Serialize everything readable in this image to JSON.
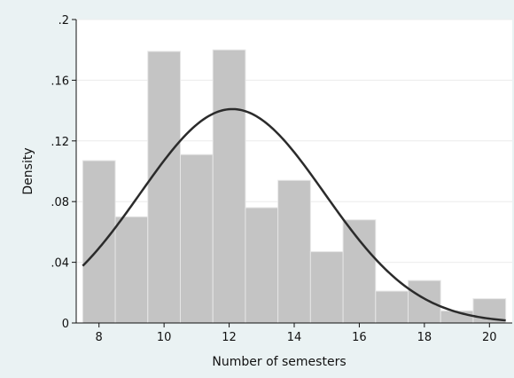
{
  "chart_data": {
    "type": "histogram",
    "title": "",
    "xlabel": "Number of semesters",
    "ylabel": "Density",
    "xlim": [
      7.3,
      20.7
    ],
    "ylim": [
      0,
      0.2
    ],
    "x_ticks": [
      8,
      10,
      12,
      14,
      16,
      18,
      20
    ],
    "x_tick_labels": [
      "8",
      "10",
      "12",
      "14",
      "16",
      "18",
      "20"
    ],
    "y_ticks": [
      0,
      0.04,
      0.08,
      0.12,
      0.16,
      0.2
    ],
    "y_tick_labels": [
      "0",
      ".04",
      ".08",
      ".12",
      ".16",
      ".2"
    ],
    "grid": true,
    "bin_width": 1,
    "bins": [
      {
        "start": 7.5,
        "end": 8.5,
        "density": 0.107
      },
      {
        "start": 8.5,
        "end": 9.5,
        "density": 0.07
      },
      {
        "start": 9.5,
        "end": 10.5,
        "density": 0.179
      },
      {
        "start": 10.5,
        "end": 11.5,
        "density": 0.111
      },
      {
        "start": 11.5,
        "end": 12.5,
        "density": 0.18
      },
      {
        "start": 12.5,
        "end": 13.5,
        "density": 0.076
      },
      {
        "start": 13.5,
        "end": 14.5,
        "density": 0.094
      },
      {
        "start": 14.5,
        "end": 15.5,
        "density": 0.047
      },
      {
        "start": 15.5,
        "end": 16.5,
        "density": 0.068
      },
      {
        "start": 16.5,
        "end": 17.5,
        "density": 0.021
      },
      {
        "start": 17.5,
        "end": 18.5,
        "density": 0.028
      },
      {
        "start": 18.5,
        "end": 19.5,
        "density": 0.008
      },
      {
        "start": 19.5,
        "end": 20.5,
        "density": 0.016
      }
    ],
    "normal_curve": {
      "mean": 12.1,
      "sd": 2.83,
      "x_range": [
        7.5,
        20.5
      ]
    },
    "colors": {
      "bars": "#c4c4c4",
      "bar_edge": "#e6e6e6",
      "curve": "#2b2b2b",
      "background": "#eaf2f3",
      "plot_area": "#ffffff"
    }
  }
}
